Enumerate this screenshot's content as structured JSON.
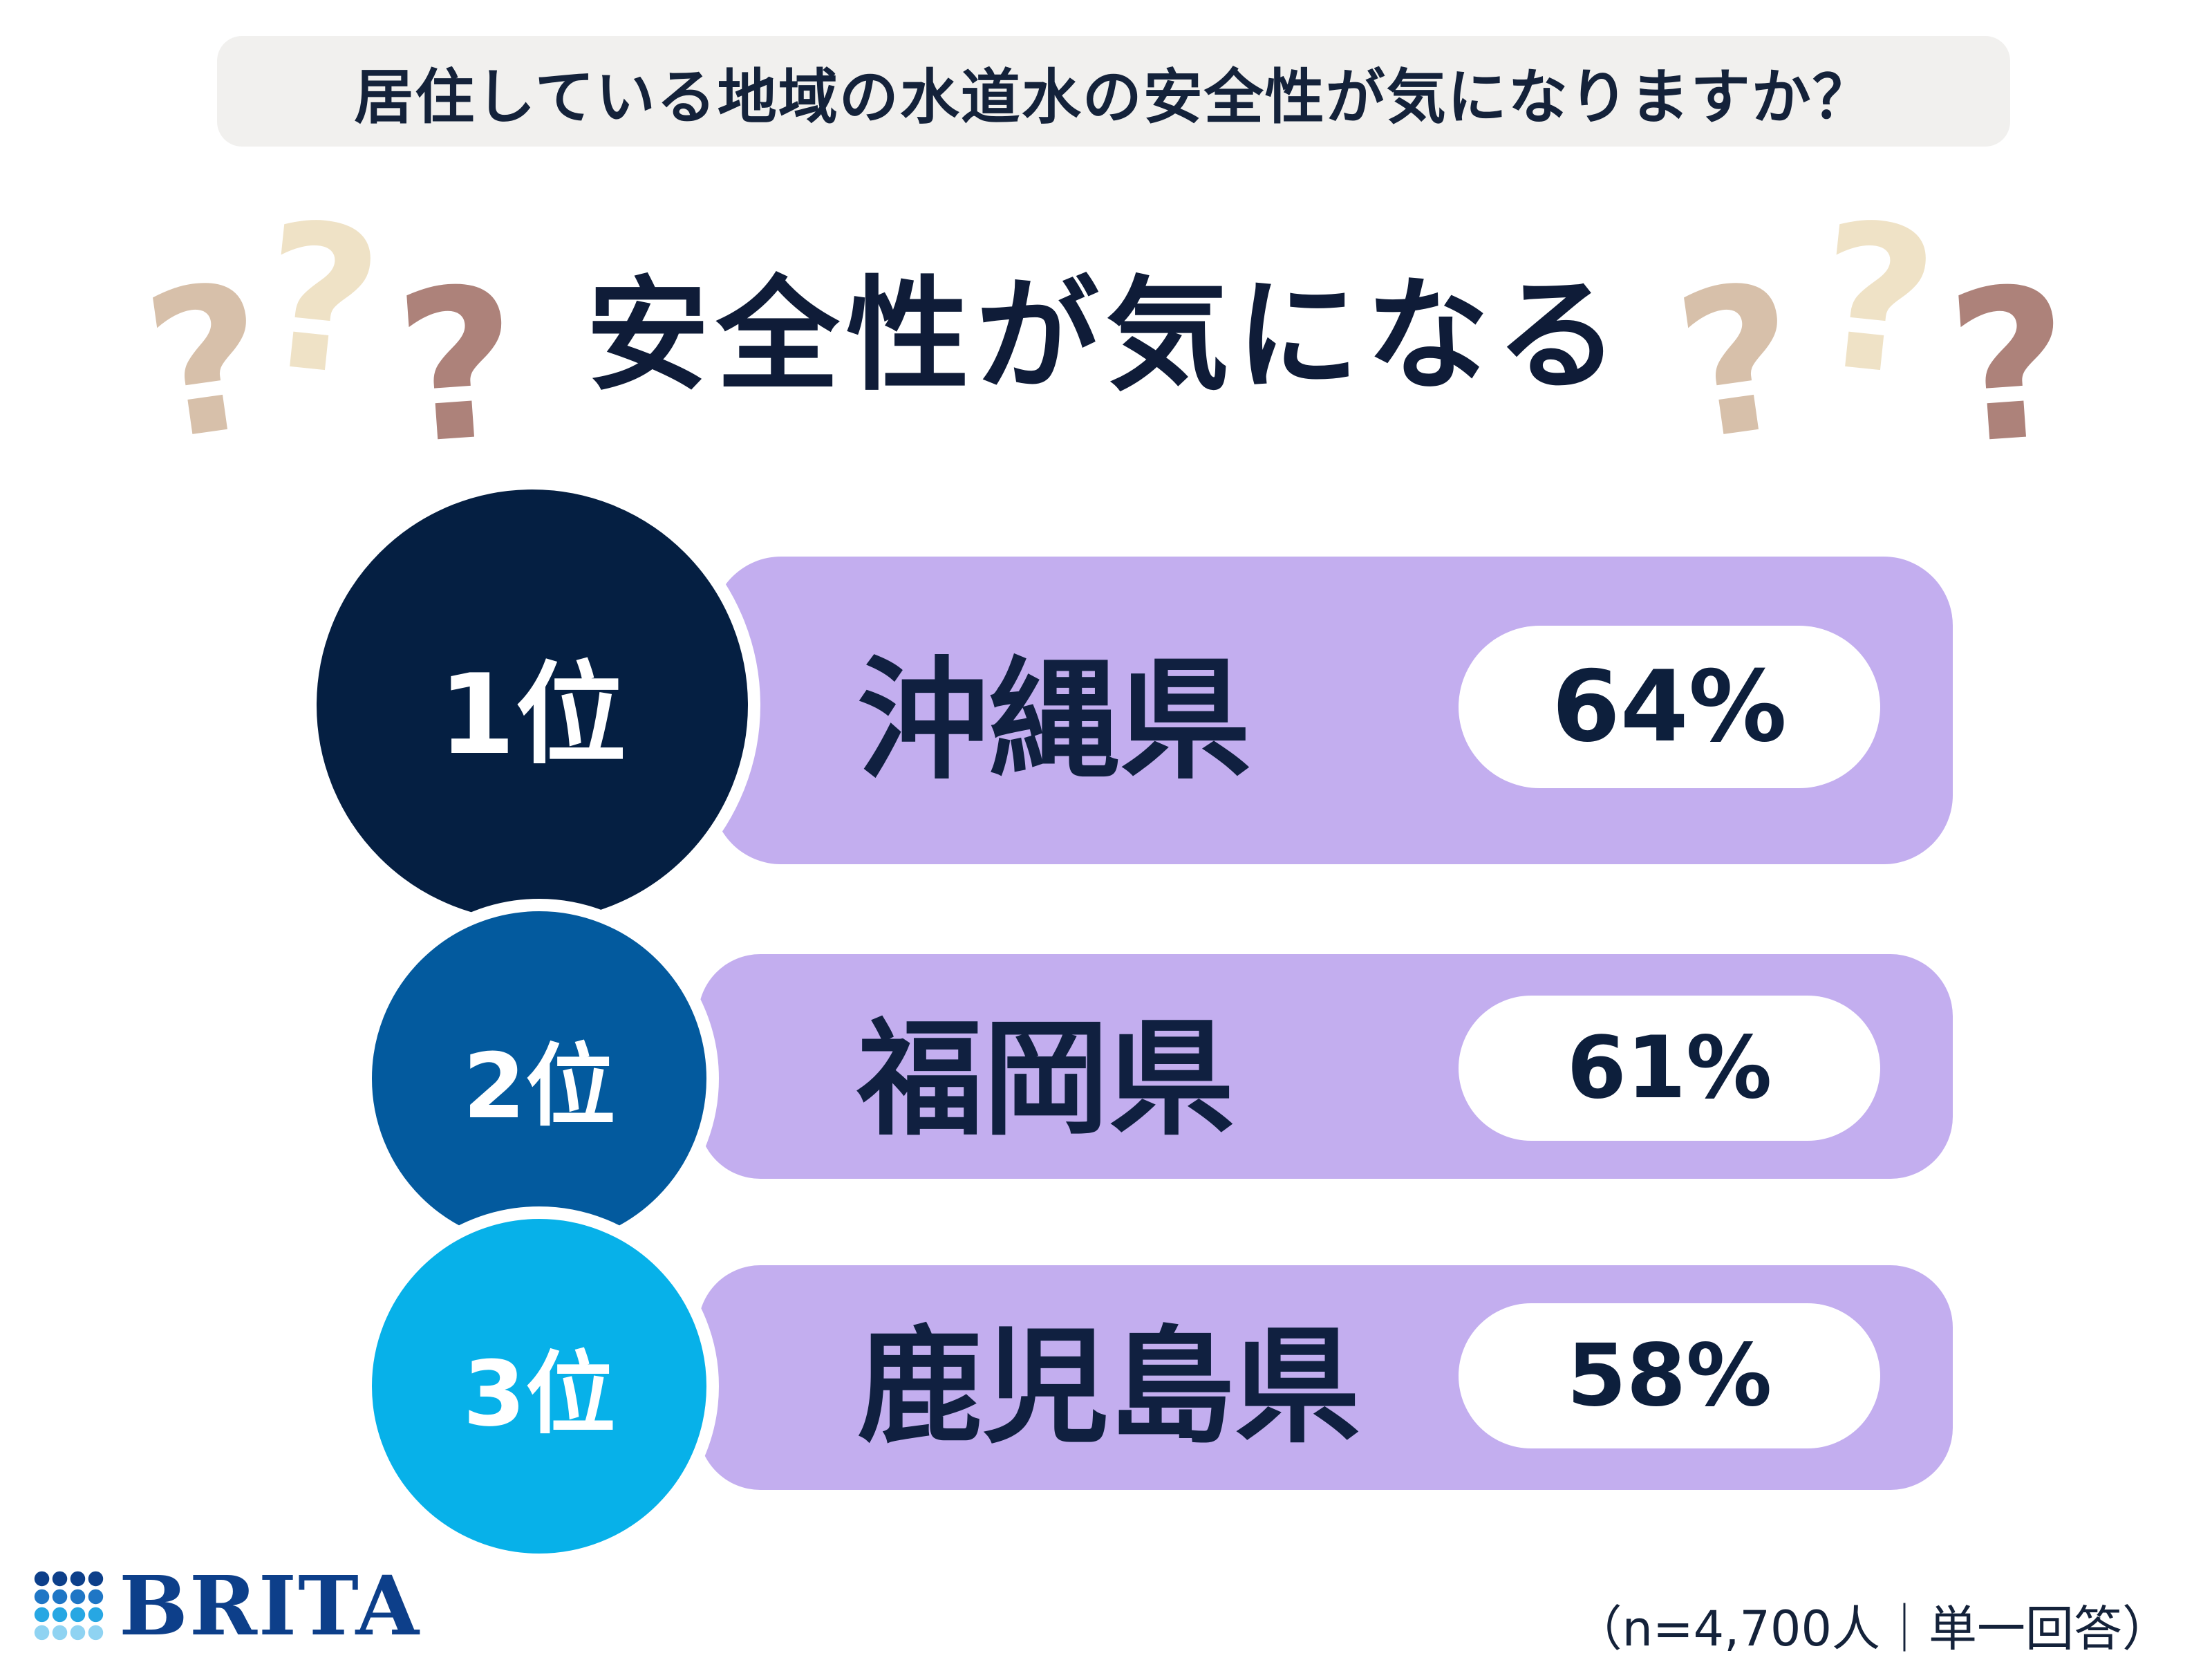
{
  "question": "居住している地域の水道水の安全性が気になりますか？",
  "headline": "安全性が気になる",
  "decor": {
    "qmark_glyph": "?",
    "qmark_colors": [
      "#d7c0aa",
      "#efe2c6",
      "#ad827a"
    ]
  },
  "chart_data": {
    "type": "bar",
    "title": "安全性が気になる",
    "categories": [
      "沖縄県",
      "福岡県",
      "鹿児島県"
    ],
    "ranks": [
      "1位",
      "2位",
      "3位"
    ],
    "values": [
      64,
      61,
      58
    ],
    "value_labels": [
      "64%",
      "61%",
      "58%"
    ],
    "unit": "%"
  },
  "colors": {
    "rank1": "#051f42",
    "rank2": "#035a9e",
    "rank3": "#07b1e9",
    "pill": "#c3aeef",
    "text_dark": "#0d1f3c"
  },
  "footer": {
    "brand": "BRITA",
    "note": "（n=4,700人｜単一回答）"
  }
}
